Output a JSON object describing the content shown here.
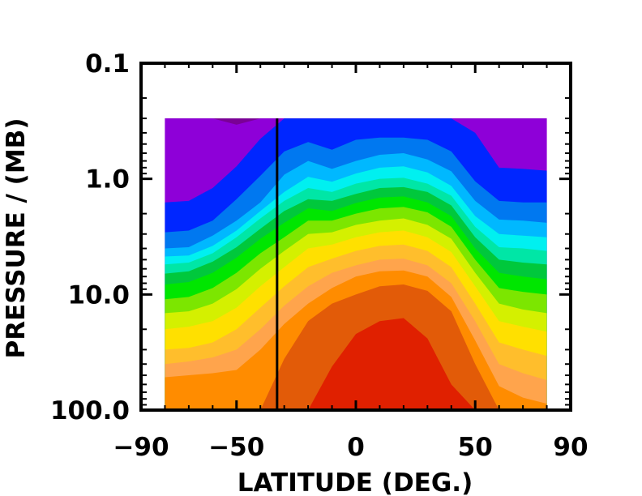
{
  "chart_data": {
    "type": "heatmap",
    "title": "",
    "xlabel": "LATITUDE (DEG.)",
    "ylabel": "PRESSURE / (MB)",
    "x_ticks": [
      {
        "value": -90,
        "label": "−90"
      },
      {
        "value": -50,
        "label": "−50"
      },
      {
        "value": 0,
        "label": "0"
      },
      {
        "value": 50,
        "label": "50"
      },
      {
        "value": 90,
        "label": "90"
      }
    ],
    "y_ticks": [
      {
        "value": 0.1,
        "label": "0.1"
      },
      {
        "value": 1.0,
        "label": "1.0"
      },
      {
        "value": 10.0,
        "label": "10.0"
      },
      {
        "value": 100.0,
        "label": "100.0"
      }
    ],
    "xlim": [
      -90,
      90
    ],
    "ylim": [
      100.0,
      0.1
    ],
    "y_scale": "log",
    "y_inverted": true,
    "data_extent": {
      "x": [
        -80,
        80
      ],
      "y": [
        0.3,
        100.0
      ]
    },
    "reference_line": {
      "axis": "x",
      "value": -33
    },
    "colormap": [
      "#7a0096",
      "#8e00d8",
      "#0026ff",
      "#0078f0",
      "#00b8ff",
      "#00f0f0",
      "#00e6a6",
      "#00c83c",
      "#00e600",
      "#7ce600",
      "#d4f000",
      "#ffe000",
      "#ffbe2c",
      "#ffa44c",
      "#ff8c00",
      "#e25b08",
      "#e02000"
    ],
    "pressure_levels": [
      0.3,
      0.5,
      0.7,
      1.0,
      1.5,
      2.0,
      3.0,
      5.0,
      7.0,
      10.0,
      15.0,
      20.0,
      30.0,
      50.0,
      70.0,
      100.0
    ],
    "contour_boundaries": {
      "latitude": [
        -80,
        -70,
        -60,
        -50,
        -40,
        -30,
        -20,
        -10,
        0,
        10,
        20,
        30,
        40,
        50,
        60,
        70,
        80
      ],
      "levels_mb": [
        [
          null,
          null,
          null,
          0.34,
          0.3,
          0.3,
          0.3,
          0.3,
          0.3,
          0.3,
          0.3,
          0.3,
          0.3,
          null,
          null,
          null,
          null
        ],
        [
          1.6,
          1.55,
          1.2,
          0.78,
          0.45,
          0.3,
          0.3,
          0.3,
          0.3,
          0.3,
          0.3,
          0.3,
          0.3,
          0.4,
          0.8,
          0.82,
          0.85
        ],
        [
          2.9,
          2.8,
          2.3,
          1.5,
          0.94,
          0.58,
          0.48,
          0.56,
          0.46,
          0.44,
          0.44,
          0.46,
          0.58,
          1.05,
          1.55,
          1.6,
          1.6
        ],
        [
          4.0,
          3.9,
          3.1,
          2.3,
          1.6,
          0.92,
          0.7,
          0.82,
          0.7,
          0.62,
          0.6,
          0.68,
          0.86,
          1.55,
          2.25,
          2.3,
          2.4
        ],
        [
          4.7,
          4.6,
          3.8,
          2.8,
          1.9,
          1.3,
          0.96,
          1.06,
          0.9,
          0.8,
          0.78,
          0.88,
          1.15,
          2.1,
          3.0,
          3.1,
          3.2
        ],
        [
          5.5,
          5.3,
          4.4,
          3.2,
          2.2,
          1.55,
          1.2,
          1.3,
          1.1,
          1.0,
          0.98,
          1.1,
          1.4,
          2.6,
          3.9,
          4.0,
          4.2
        ],
        [
          6.6,
          6.3,
          5.2,
          3.9,
          2.7,
          1.9,
          1.5,
          1.55,
          1.35,
          1.2,
          1.18,
          1.3,
          1.7,
          3.2,
          5.0,
          5.3,
          5.5
        ],
        [
          8.2,
          7.8,
          6.5,
          4.8,
          3.3,
          2.4,
          1.8,
          1.9,
          1.62,
          1.45,
          1.42,
          1.6,
          2.1,
          4.0,
          6.5,
          7.0,
          7.4
        ],
        [
          11.0,
          10.5,
          8.8,
          6.5,
          4.4,
          3.2,
          2.3,
          2.3,
          2.0,
          1.8,
          1.75,
          1.95,
          2.6,
          5.0,
          8.8,
          9.5,
          10.0
        ],
        [
          14.5,
          14.0,
          12.0,
          9.0,
          6.0,
          4.2,
          3.0,
          2.9,
          2.5,
          2.3,
          2.2,
          2.5,
          3.3,
          6.5,
          12.0,
          13.5,
          14.5
        ],
        [
          20.0,
          19.0,
          17.0,
          13.0,
          8.5,
          5.8,
          4.0,
          3.7,
          3.2,
          2.9,
          2.8,
          3.2,
          4.3,
          8.5,
          17.0,
          19.0,
          21.0
        ],
        [
          30.0,
          29.0,
          26.0,
          20.0,
          13.0,
          8.5,
          5.8,
          4.9,
          4.2,
          3.8,
          3.7,
          4.2,
          5.8,
          12.0,
          26.0,
          30.0,
          34.0
        ],
        [
          40.0,
          38.0,
          35.0,
          30.0,
          20.0,
          12.5,
          8.5,
          6.5,
          5.6,
          5.0,
          4.9,
          5.6,
          8.0,
          17.0,
          40.0,
          48.0,
          55.0
        ],
        [
          52.0,
          50.0,
          48.0,
          45.0,
          30.0,
          18.0,
          12.0,
          8.8,
          7.0,
          6.3,
          6.2,
          7.0,
          10.5,
          25.0,
          62.0,
          78.0,
          88.0
        ],
        [
          100.0,
          100.0,
          100.0,
          100.0,
          100.0,
          36.0,
          17.0,
          12.0,
          10.0,
          8.5,
          8.2,
          9.3,
          14.0,
          40.0,
          100.0,
          100.0,
          100.0
        ],
        [
          100.0,
          100.0,
          100.0,
          100.0,
          100.0,
          100.0,
          100.0,
          42.0,
          22.0,
          17.0,
          16.0,
          24.0,
          60.0,
          100.0,
          100.0,
          100.0,
          100.0
        ],
        [
          100.0,
          100.0,
          100.0,
          100.0,
          100.0,
          100.0,
          100.0,
          100.0,
          100.0,
          100.0,
          100.0,
          100.0,
          100.0,
          100.0,
          100.0,
          100.0,
          100.0
        ]
      ]
    }
  }
}
